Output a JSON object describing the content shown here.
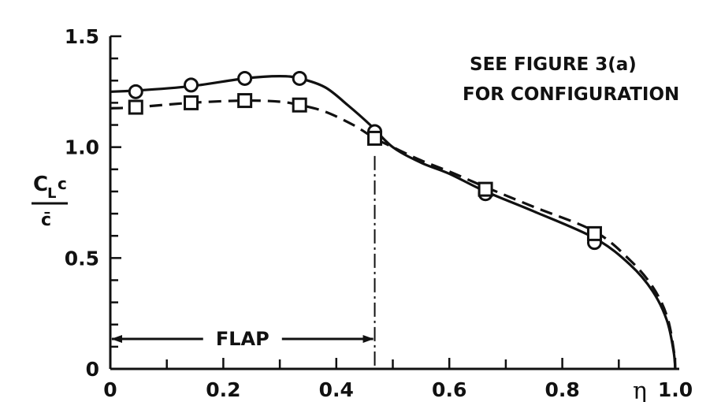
{
  "chart_data": {
    "type": "line",
    "x_axis_symbol": "η",
    "y_axis_label": {
      "numerator_main": "C",
      "numerator_sub": "L",
      "numerator_tail": "c",
      "denominator": "c̄"
    },
    "xlim": [
      0,
      1.0
    ],
    "ylim": [
      0,
      1.5
    ],
    "x_ticks": [
      {
        "value": 0,
        "label": "0"
      },
      {
        "value": 0.2,
        "label": "0.2"
      },
      {
        "value": 0.4,
        "label": "0.4"
      },
      {
        "value": 0.6,
        "label": "0.6"
      },
      {
        "value": 0.8,
        "label": "0.8"
      },
      {
        "value": 1.0,
        "label": "1.0"
      }
    ],
    "y_ticks": [
      {
        "value": 0,
        "label": "0"
      },
      {
        "value": 0.5,
        "label": "0.5"
      },
      {
        "value": 1.0,
        "label": "1.0"
      },
      {
        "value": 1.5,
        "label": "1.5"
      }
    ],
    "series": [
      {
        "marker": "circle",
        "line_style": "solid",
        "points": [
          [
            0.045,
            1.25
          ],
          [
            0.143,
            1.28
          ],
          [
            0.238,
            1.31
          ],
          [
            0.335,
            1.31
          ],
          [
            0.468,
            1.07
          ],
          [
            0.664,
            0.79
          ],
          [
            0.857,
            0.57
          ]
        ],
        "curve": [
          [
            0,
            1.25
          ],
          [
            0.045,
            1.255
          ],
          [
            0.143,
            1.275
          ],
          [
            0.238,
            1.31
          ],
          [
            0.3,
            1.32
          ],
          [
            0.335,
            1.31
          ],
          [
            0.38,
            1.27
          ],
          [
            0.42,
            1.19
          ],
          [
            0.46,
            1.1
          ],
          [
            0.5,
            1.0
          ],
          [
            0.55,
            0.93
          ],
          [
            0.6,
            0.88
          ],
          [
            0.664,
            0.8
          ],
          [
            0.75,
            0.71
          ],
          [
            0.857,
            0.59
          ],
          [
            0.92,
            0.47
          ],
          [
            0.96,
            0.35
          ],
          [
            0.985,
            0.22
          ],
          [
            0.997,
            0.08
          ],
          [
            1.0,
            0
          ]
        ]
      },
      {
        "marker": "square",
        "line_style": "dashed",
        "points": [
          [
            0.045,
            1.18
          ],
          [
            0.143,
            1.2
          ],
          [
            0.238,
            1.21
          ],
          [
            0.335,
            1.19
          ],
          [
            0.468,
            1.04
          ],
          [
            0.664,
            0.81
          ],
          [
            0.857,
            0.61
          ]
        ],
        "curve": [
          [
            0,
            1.175
          ],
          [
            0.045,
            1.18
          ],
          [
            0.143,
            1.2
          ],
          [
            0.238,
            1.21
          ],
          [
            0.3,
            1.205
          ],
          [
            0.335,
            1.19
          ],
          [
            0.38,
            1.16
          ],
          [
            0.43,
            1.1
          ],
          [
            0.468,
            1.04
          ],
          [
            0.5,
            1.0
          ],
          [
            0.55,
            0.94
          ],
          [
            0.6,
            0.89
          ],
          [
            0.664,
            0.82
          ],
          [
            0.75,
            0.73
          ],
          [
            0.857,
            0.62
          ],
          [
            0.92,
            0.49
          ],
          [
            0.96,
            0.37
          ],
          [
            0.985,
            0.24
          ],
          [
            0.997,
            0.09
          ],
          [
            1.0,
            0
          ]
        ]
      }
    ],
    "flap_boundary_x": 0.468,
    "annotations": {
      "note_line1": "SEE FIGURE 3(a)",
      "note_line2": "FOR CONFIGURATION",
      "flap_label": "FLAP",
      "flap_range": [
        0,
        0.468
      ],
      "flap_arrow_y": 0.135
    },
    "grid": false,
    "legend": "none"
  }
}
